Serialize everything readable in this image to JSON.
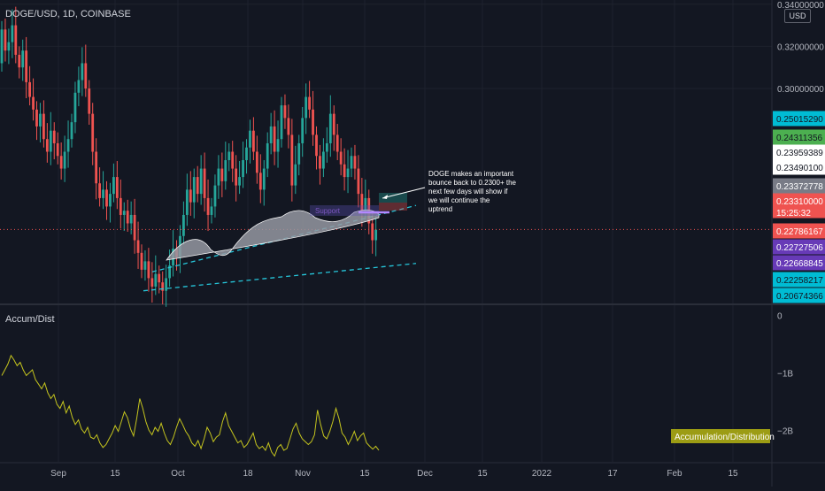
{
  "header": {
    "symbol": "DOGE/USD, 1D, COINBASE",
    "currency_button": "USD",
    "indicator_title": "Accum/Dist",
    "indicator_badge": "Accumulation/Distribution"
  },
  "colors": {
    "background": "#131722",
    "up": "#26a69a",
    "down": "#ef5350",
    "trendline": "#26c6da",
    "ad_line": "#c5c51e",
    "badge_bg": "#9c9c14",
    "grid": "#1e222d"
  },
  "chart_data": [
    {
      "type": "candlestick",
      "title": "DOGE/USD, 1D, COINBASE",
      "grid": true,
      "y_axis": {
        "side": "right",
        "tick_labels": [
          "0.34000000",
          "0.32000000",
          "0.30000000"
        ]
      },
      "x_axis": {
        "tick_labels": [
          "Sep",
          "15",
          "Oct",
          "18",
          "Nov",
          "15",
          "Dec",
          "15",
          "2022",
          "17",
          "Feb",
          "15"
        ]
      },
      "ylim": [
        0.198,
        0.342
      ],
      "price_badges": [
        {
          "value": "0.25015290",
          "color": "#00bcd4",
          "text_color": "#131722"
        },
        {
          "value": "0.24311356",
          "color": "#4caf50",
          "text_color": "#131722"
        },
        {
          "value": "0.23959389",
          "color": "#ffffff",
          "text_color": "#131722"
        },
        {
          "value": "0.23490100",
          "color": "#ffffff",
          "text_color": "#131722"
        },
        {
          "value": "0.23372778",
          "color": "#787b86",
          "text_color": "#ffffff"
        },
        {
          "value": "0.23310000",
          "color": "#ef5350",
          "text_color": "#ffffff"
        },
        {
          "value": "15:25:32",
          "color": "#ef5350",
          "text_color": "#ffffff"
        },
        {
          "value": "0.22786167",
          "color": "#ef5350",
          "text_color": "#ffffff"
        },
        {
          "value": "0.22727506",
          "color": "#673ab7",
          "text_color": "#ffffff"
        },
        {
          "value": "0.22668845",
          "color": "#673ab7",
          "text_color": "#ffffff"
        },
        {
          "value": "0.22258217",
          "color": "#00bcd4",
          "text_color": "#131722"
        },
        {
          "value": "0.20674366",
          "color": "#00bcd4",
          "text_color": "#131722"
        }
      ],
      "current_price": 0.2331,
      "annotation": "DOGE makes an important bounce back to 0.2300+ the next few days will show if we will continue the uptrend",
      "support_label": "Support",
      "channel": {
        "lower": [
          [
            0,
            0.204
          ],
          [
            1,
            0.217
          ]
        ],
        "upper": [
          [
            0,
            0.213
          ],
          [
            1,
            0.2445
          ]
        ]
      }
    },
    {
      "type": "line",
      "title": "Accum/Dist",
      "y_axis": {
        "side": "right",
        "tick_labels": [
          "0",
          "−1B",
          "−2B"
        ]
      },
      "ylim": [
        -2.55,
        0.05
      ],
      "series": [
        {
          "name": "Accumulation/Distribution",
          "values": [
            -1.05,
            -0.95,
            -0.85,
            -0.7,
            -0.78,
            -0.88,
            -0.82,
            -0.95,
            -1.05,
            -1.0,
            -0.95,
            -1.12,
            -1.2,
            -1.28,
            -1.18,
            -1.35,
            -1.45,
            -1.38,
            -1.55,
            -1.62,
            -1.5,
            -1.7,
            -1.58,
            -1.78,
            -1.9,
            -1.82,
            -1.98,
            -2.05,
            -1.95,
            -2.12,
            -2.15,
            -2.08,
            -2.22,
            -2.3,
            -2.25,
            -2.15,
            -2.05,
            -1.92,
            -2.02,
            -1.85,
            -1.68,
            -1.78,
            -1.98,
            -2.1,
            -1.8,
            -1.45,
            -1.62,
            -1.85,
            -2.0,
            -2.08,
            -1.95,
            -2.02,
            -1.88,
            -2.05,
            -2.18,
            -2.25,
            -2.12,
            -1.95,
            -1.8,
            -1.9,
            -2.02,
            -2.1,
            -2.22,
            -2.28,
            -2.18,
            -2.32,
            -2.15,
            -1.95,
            -2.05,
            -2.2,
            -2.12,
            -2.08,
            -1.85,
            -1.7,
            -1.92,
            -2.02,
            -2.12,
            -2.22,
            -2.18,
            -2.3,
            -2.25,
            -2.15,
            -2.05,
            -2.25,
            -2.32,
            -2.28,
            -2.35,
            -2.22,
            -2.38,
            -2.45,
            -2.3,
            -2.25,
            -2.35,
            -2.32,
            -2.15,
            -1.98,
            -1.88,
            -2.05,
            -2.15,
            -2.2,
            -2.25,
            -2.2,
            -2.08,
            -1.65,
            -1.9,
            -2.1,
            -2.15,
            -2.02,
            -1.85,
            -1.62,
            -1.8,
            -2.05,
            -2.12,
            -2.25,
            -2.15,
            -2.02,
            -2.18,
            -2.1,
            -2.05,
            -2.22,
            -2.28,
            -2.33,
            -2.28,
            -2.35
          ]
        }
      ]
    }
  ]
}
